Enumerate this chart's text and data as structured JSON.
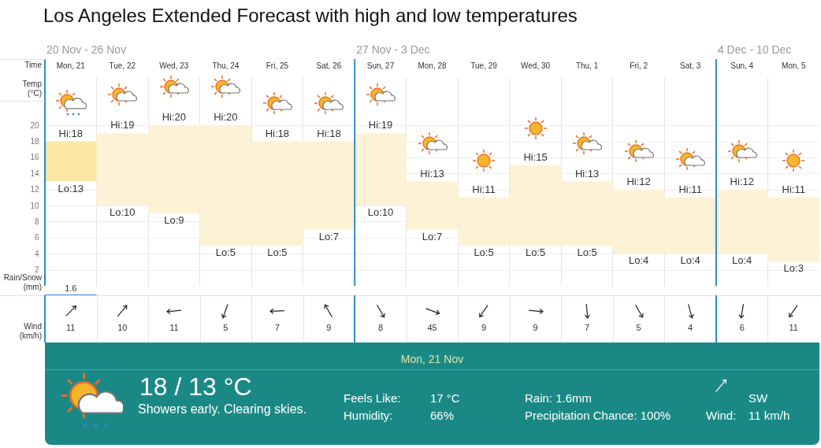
{
  "chart_data": [
    {
      "type": "bar",
      "title": "Los Angeles Extended Forecast with high and low temperatures",
      "xlabel": "Time",
      "ylabel": "Temp (°C)",
      "categories": [
        "Mon, 21",
        "Tue, 22",
        "Wed, 23",
        "Thu, 24",
        "Fri, 25",
        "Sat, 26",
        "Sun, 27",
        "Mon, 28",
        "Tue, 29",
        "Wed, 30",
        "Thu, 1",
        "Fri, 2",
        "Sat, 3",
        "Sun, 4",
        "Mon, 5"
      ],
      "base": [
        13,
        10,
        9,
        5,
        5,
        7,
        10,
        7,
        5,
        5,
        5,
        4,
        4,
        4,
        3
      ],
      "values": [
        5,
        9,
        11,
        15,
        13,
        11,
        9,
        6,
        6,
        10,
        8,
        8,
        7,
        8,
        8
      ],
      "colors": [
        "#fbe7a6",
        "#fdf2d5",
        "#fdf2d5",
        "#fdf2d5",
        "#fdf2d5",
        "#fdf2d5",
        "#fdf2d5",
        "#fdf2d5",
        "#fdf2d5",
        "#fdf2d5",
        "#fdf2d5",
        "#fdf2d5",
        "#fdf2d5",
        "#fdf2d5",
        "#fdf2d5"
      ],
      "ylim": [
        0,
        26
      ],
      "yticks": [
        2,
        4,
        6,
        8,
        10,
        12,
        14,
        16,
        18,
        20
      ],
      "grid": true,
      "annotations": [
        "20 Nov - 26 Nov",
        "27 Nov - 3 Dec",
        "4 Dec - 10 Dec",
        {
          "text": "Hi:18",
          "x": "Mon, 21",
          "y": 18
        },
        {
          "text": "Lo:13",
          "x": "Mon, 21",
          "y": 13
        },
        {
          "text": "Hi:19",
          "x": "Tue, 22",
          "y": 19
        },
        {
          "text": "Lo:10",
          "x": "Tue, 22",
          "y": 10
        },
        {
          "text": "Hi:20",
          "x": "Wed, 23",
          "y": 20
        },
        {
          "text": "Lo:9",
          "x": "Wed, 23",
          "y": 9
        },
        {
          "text": "Hi:20",
          "x": "Thu, 24",
          "y": 20
        },
        {
          "text": "Lo:5",
          "x": "Thu, 24",
          "y": 5
        },
        {
          "text": "Hi:18",
          "x": "Fri, 25",
          "y": 18
        },
        {
          "text": "Lo:5",
          "x": "Fri, 25",
          "y": 5
        },
        {
          "text": "Hi:18",
          "x": "Sat, 26",
          "y": 18
        },
        {
          "text": "Lo:7",
          "x": "Sat, 26",
          "y": 7
        },
        {
          "text": "Hi:19",
          "x": "Sun, 27",
          "y": 19
        },
        {
          "text": "Lo:10",
          "x": "Sun, 27",
          "y": 10
        },
        {
          "text": "Hi:13",
          "x": "Mon, 28",
          "y": 13
        },
        {
          "text": "Lo:7",
          "x": "Mon, 28",
          "y": 7
        },
        {
          "text": "Hi:11",
          "x": "Tue, 29",
          "y": 11
        },
        {
          "text": "Lo:5",
          "x": "Tue, 29",
          "y": 5
        },
        {
          "text": "Hi:15",
          "x": "Wed, 30",
          "y": 15
        },
        {
          "text": "Lo:5",
          "x": "Wed, 30",
          "y": 5
        },
        {
          "text": "Hi:13",
          "x": "Thu, 1",
          "y": 13
        },
        {
          "text": "Lo:5",
          "x": "Thu, 1",
          "y": 5
        },
        {
          "text": "Hi:12",
          "x": "Fri, 2",
          "y": 12
        },
        {
          "text": "Lo:4",
          "x": "Fri, 2",
          "y": 4
        },
        {
          "text": "Hi:11",
          "x": "Sat, 3",
          "y": 11
        },
        {
          "text": "Lo:4",
          "x": "Sat, 3",
          "y": 4
        },
        {
          "text": "Hi:12",
          "x": "Sun, 4",
          "y": 12
        },
        {
          "text": "Lo:4",
          "x": "Sun, 4",
          "y": 4
        },
        {
          "text": "Hi:11",
          "x": "Mon, 5",
          "y": 11
        },
        {
          "text": "Lo:3",
          "x": "Mon, 5",
          "y": 3
        }
      ]
    },
    {
      "type": "other",
      "title": "Rain/Snow (mm)",
      "data_labels": true,
      "categories": [
        null,
        null,
        null,
        null,
        null,
        null,
        null,
        null,
        null,
        null,
        null,
        null,
        null,
        null,
        null
      ],
      "values": [
        1.6,
        null,
        null,
        null,
        null,
        null,
        null,
        null,
        null,
        null,
        null,
        null,
        null,
        null,
        null
      ],
      "colors": [
        "#4a90d9",
        null,
        null,
        null,
        null,
        null,
        null,
        null,
        null,
        null,
        null,
        null,
        null,
        null,
        null
      ]
    },
    {
      "type": "other",
      "ylabel": "Wind (km/h)",
      "data_labels": true,
      "categories": [
        null,
        null,
        null,
        null,
        null,
        null,
        null,
        null,
        null,
        null,
        null,
        null,
        null,
        null,
        null
      ],
      "values": [
        11,
        10,
        11,
        5,
        7,
        9,
        8,
        45,
        9,
        9,
        7,
        5,
        4,
        6,
        11
      ]
    },
    {
      "type": "other",
      "title": "Mon, 21 Nov",
      "annotations": [
        "18 / 13 °C",
        "Showers early. Clearing skies.",
        "Feels Like:",
        "17 °C",
        "Humidity:",
        "66%",
        "Rain: 1.6mm",
        "Precipitation Chance: 100%",
        "SW",
        "Wind:",
        "11 km/h"
      ]
    }
  ]
}
